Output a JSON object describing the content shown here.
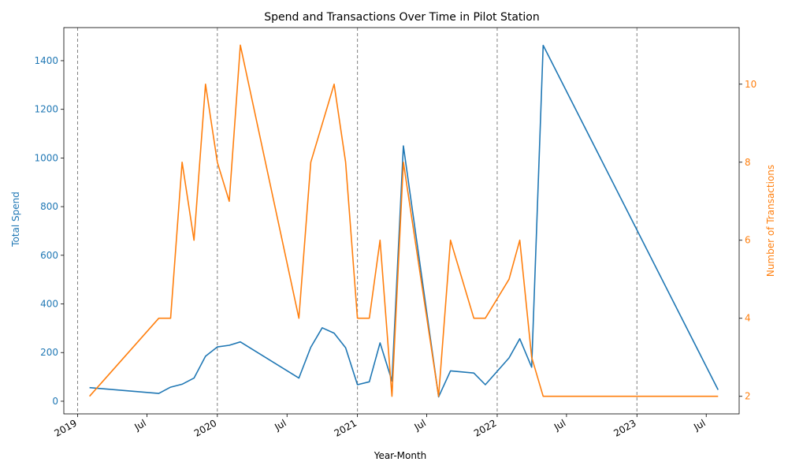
{
  "chart_data": {
    "type": "line",
    "title": "Spend and Transactions Over Time in Pilot Station",
    "xlabel": "Year-Month",
    "y_left_label": "Total Spend",
    "y_right_label": "Number of Transactions",
    "x_ticks": [
      {
        "date": "2019-01-01",
        "label": "2019"
      },
      {
        "date": "2019-07-01",
        "label": "Jul"
      },
      {
        "date": "2020-01-01",
        "label": "2020"
      },
      {
        "date": "2020-07-01",
        "label": "Jul"
      },
      {
        "date": "2021-01-01",
        "label": "2021"
      },
      {
        "date": "2021-07-01",
        "label": "Jul"
      },
      {
        "date": "2022-01-01",
        "label": "2022"
      },
      {
        "date": "2022-07-01",
        "label": "Jul"
      },
      {
        "date": "2023-01-01",
        "label": "2023"
      },
      {
        "date": "2023-07-01",
        "label": "Jul"
      }
    ],
    "year_gridlines": [
      "2019-01-01",
      "2020-01-01",
      "2021-01-01",
      "2022-01-01",
      "2023-01-01"
    ],
    "x_range": [
      "2018-11-26",
      "2023-09-25"
    ],
    "y_left_ticks": [
      0,
      200,
      400,
      600,
      800,
      1000,
      1200,
      1400
    ],
    "y_left_range": [
      -52,
      1536
    ],
    "y_right_ticks": [
      2,
      4,
      6,
      8,
      10
    ],
    "y_right_range": [
      1.55,
      11.45
    ],
    "colors": {
      "spend": "#1f77b4",
      "transactions": "#ff7f0e",
      "gridline": "#808080"
    },
    "series": [
      {
        "key": "spend",
        "axis": "left",
        "color": "#1f77b4",
        "points": [
          [
            "2019-02-01",
            56
          ],
          [
            "2019-08-01",
            32
          ],
          [
            "2019-09-01",
            58
          ],
          [
            "2019-10-01",
            70
          ],
          [
            "2019-11-01",
            95
          ],
          [
            "2019-12-01",
            185
          ],
          [
            "2020-01-01",
            223
          ],
          [
            "2020-02-01",
            230
          ],
          [
            "2020-03-01",
            244
          ],
          [
            "2020-08-01",
            95
          ],
          [
            "2020-09-01",
            222
          ],
          [
            "2020-10-01",
            302
          ],
          [
            "2020-11-01",
            280
          ],
          [
            "2020-12-01",
            220
          ],
          [
            "2021-01-01",
            68
          ],
          [
            "2021-02-01",
            80
          ],
          [
            "2021-03-01",
            240
          ],
          [
            "2021-04-01",
            83
          ],
          [
            "2021-05-01",
            1050
          ],
          [
            "2021-08-01",
            18
          ],
          [
            "2021-09-01",
            125
          ],
          [
            "2021-11-01",
            116
          ],
          [
            "2021-12-01",
            68
          ],
          [
            "2022-02-01",
            178
          ],
          [
            "2022-03-01",
            257
          ],
          [
            "2022-04-01",
            140
          ],
          [
            "2022-05-01",
            1463
          ],
          [
            "2023-08-01",
            47
          ]
        ]
      },
      {
        "key": "transactions",
        "axis": "right",
        "color": "#ff7f0e",
        "points": [
          [
            "2019-02-01",
            2
          ],
          [
            "2019-08-01",
            4
          ],
          [
            "2019-09-01",
            4
          ],
          [
            "2019-10-01",
            8
          ],
          [
            "2019-11-01",
            6
          ],
          [
            "2019-12-01",
            10
          ],
          [
            "2020-01-01",
            8
          ],
          [
            "2020-02-01",
            7
          ],
          [
            "2020-03-01",
            11
          ],
          [
            "2020-08-01",
            4
          ],
          [
            "2020-09-01",
            8
          ],
          [
            "2020-11-01",
            10
          ],
          [
            "2020-12-01",
            8
          ],
          [
            "2021-01-01",
            4
          ],
          [
            "2021-02-01",
            4
          ],
          [
            "2021-03-01",
            6
          ],
          [
            "2021-04-01",
            2
          ],
          [
            "2021-05-01",
            8
          ],
          [
            "2021-08-01",
            2
          ],
          [
            "2021-09-01",
            6
          ],
          [
            "2021-11-01",
            4
          ],
          [
            "2021-12-01",
            4
          ],
          [
            "2022-02-01",
            5
          ],
          [
            "2022-03-01",
            6
          ],
          [
            "2022-04-01",
            3
          ],
          [
            "2022-05-01",
            2
          ],
          [
            "2023-08-01",
            2
          ]
        ]
      }
    ]
  }
}
